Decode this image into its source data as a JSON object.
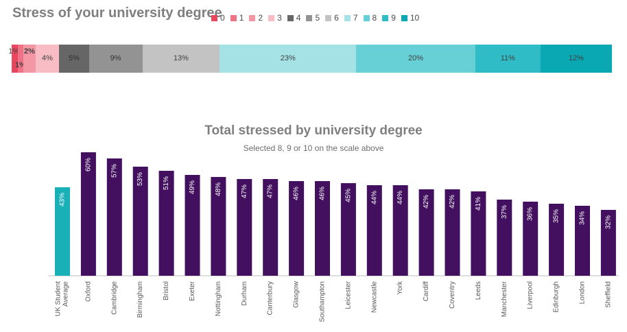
{
  "top_title": "Stress of your university degree",
  "legend": [
    {
      "label": "0",
      "color": "#e8475f"
    },
    {
      "label": "1",
      "color": "#ee7387"
    },
    {
      "label": "2",
      "color": "#f497a4"
    },
    {
      "label": "3",
      "color": "#f8bcc4"
    },
    {
      "label": "4",
      "color": "#666666"
    },
    {
      "label": "5",
      "color": "#939393"
    },
    {
      "label": "6",
      "color": "#c3c3c3"
    },
    {
      "label": "7",
      "color": "#a5e2e6"
    },
    {
      "label": "8",
      "color": "#67cfd6"
    },
    {
      "label": "9",
      "color": "#30bcc6"
    },
    {
      "label": "10",
      "color": "#0aa8b3"
    }
  ],
  "chart_data": [
    {
      "type": "bar",
      "stacked": true,
      "title": "Stress of your university degree",
      "categories": [
        "0",
        "1",
        "2",
        "3",
        "4",
        "5",
        "6",
        "7",
        "8",
        "9",
        "10"
      ],
      "values": [
        1,
        1,
        2,
        4,
        5,
        9,
        13,
        23,
        20,
        11,
        12
      ],
      "labels": [
        "1%",
        "1%",
        "2%",
        "4%",
        "5%",
        "9%",
        "13%",
        "23%",
        "20%",
        "11%",
        "12%"
      ]
    },
    {
      "type": "bar",
      "title": "Total stressed by university degree",
      "subtitle": "Selected 8, 9 or 10 on the scale above",
      "categories": [
        "UK Student Average",
        "Oxford",
        "Cambridge",
        "Birmingham",
        "Bristol",
        "Exeter",
        "Nottingham",
        "Durham",
        "Canterbury",
        "Glasgow",
        "Southampton",
        "Leicester",
        "Newcastle",
        "York",
        "Cardiff",
        "Coventry",
        "Leeds",
        "Manchester",
        "Liverpool",
        "Edinburgh",
        "London",
        "Sheffield"
      ],
      "values": [
        43,
        60,
        57,
        53,
        51,
        49,
        48,
        47,
        47,
        46,
        46,
        45,
        44,
        44,
        42,
        42,
        41,
        37,
        36,
        35,
        34,
        32
      ],
      "labels": [
        "43%",
        "60%",
        "57%",
        "53%",
        "51%",
        "49%",
        "48%",
        "47%",
        "47%",
        "46%",
        "46%",
        "45%",
        "44%",
        "44%",
        "42%",
        "42%",
        "41%",
        "37%",
        "36%",
        "35%",
        "34%",
        "32%"
      ],
      "highlight_color": "#19b0b8",
      "bar_color": "#42105e",
      "ylim": [
        0,
        60
      ]
    }
  ]
}
